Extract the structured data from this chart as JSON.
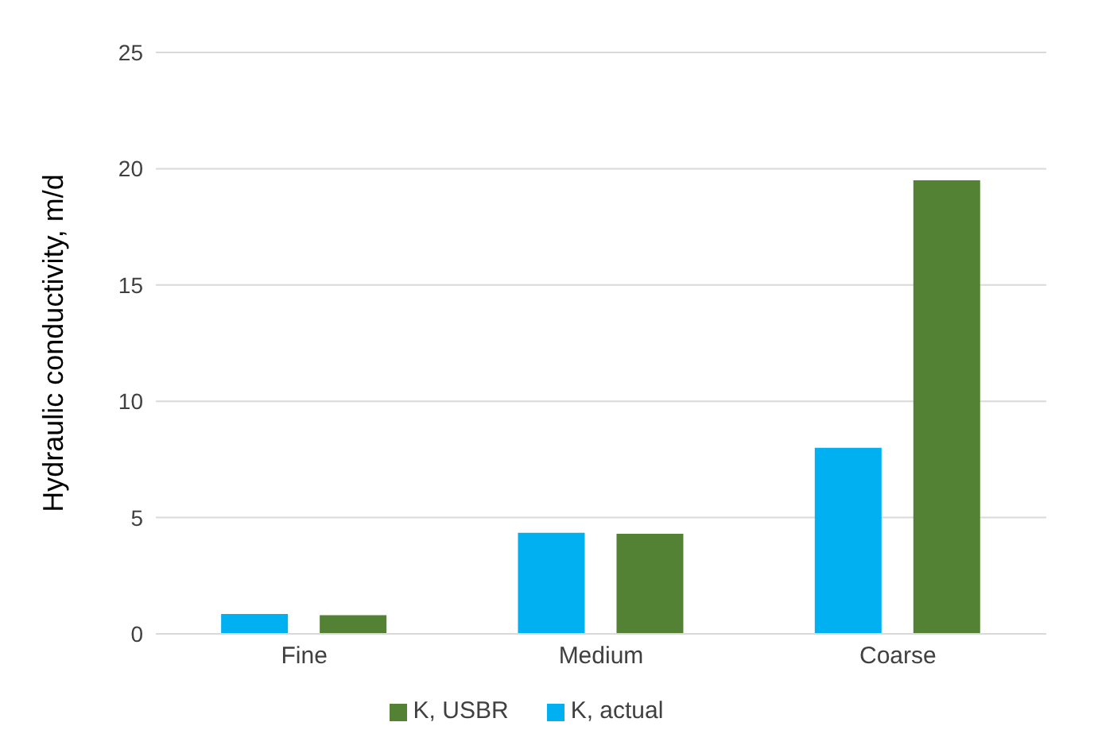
{
  "chart_data": {
    "type": "bar",
    "ylabel": "Hydraulic conductivity, m/d",
    "categories": [
      "Fine",
      "Medium",
      "Coarse"
    ],
    "series": [
      {
        "name": "K, actual",
        "color": "#00b0f0",
        "values": [
          0.85,
          4.35,
          8.0
        ]
      },
      {
        "name": "K, USBR",
        "color": "#548235",
        "values": [
          0.8,
          4.3,
          19.5
        ]
      }
    ],
    "ylim": [
      0,
      25
    ],
    "yticks": [
      0,
      5,
      10,
      15,
      20,
      25
    ],
    "grid": "y",
    "legend": "bottom"
  }
}
